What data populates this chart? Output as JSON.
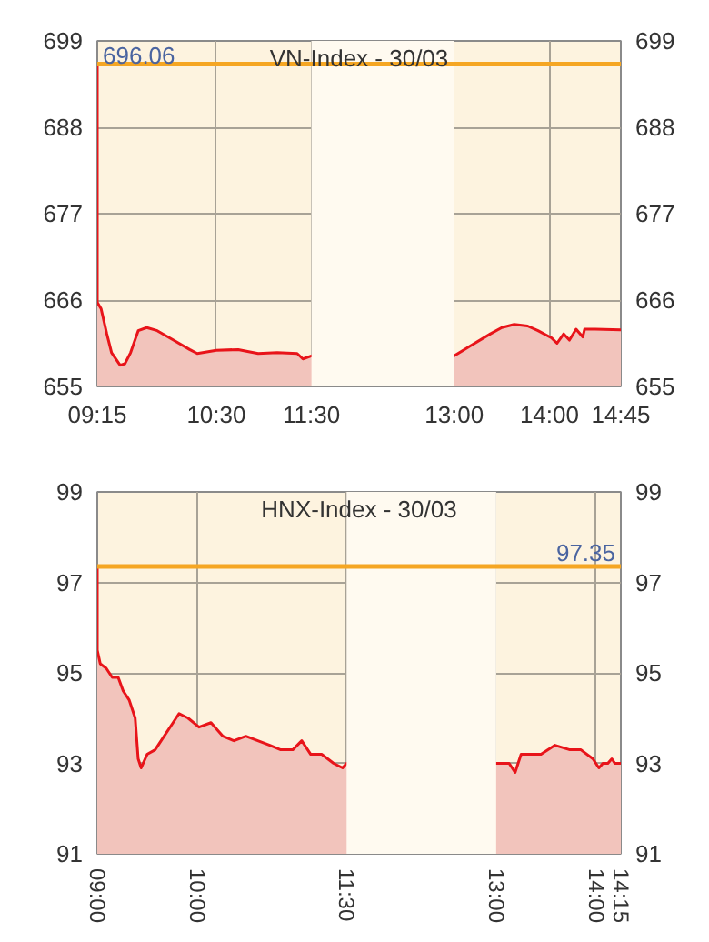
{
  "chart_data": [
    {
      "type": "area",
      "title": "VN-Index - 30/03",
      "grid": true,
      "x": [
        9.25,
        9.25,
        9.29,
        9.35,
        9.4,
        9.49,
        9.54,
        9.6,
        9.68,
        9.77,
        9.88,
        10.05,
        10.22,
        10.3,
        10.5,
        10.73,
        10.94,
        11.14,
        11.35,
        11.41,
        11.5,
        13,
        13.16,
        13.38,
        13.5,
        13.63,
        13.77,
        13.88,
        14.02,
        14.08,
        14.15,
        14.21,
        14.28,
        14.35,
        14.37,
        14.48,
        14.75
      ],
      "series": [
        {
          "color": "#e8141a",
          "values": [
            696.0,
            665.7,
            664.9,
            661.7,
            659.3,
            657.7,
            657.9,
            659.3,
            662.1,
            662.5,
            662.1,
            660.9,
            659.7,
            659.2,
            659.6,
            659.7,
            659.2,
            659.3,
            659.2,
            658.5,
            658.9,
            658.9,
            660.1,
            661.7,
            662.5,
            662.9,
            662.7,
            662.1,
            661.2,
            660.5,
            661.7,
            660.9,
            662.3,
            661.3,
            662.3,
            662.3,
            662.2
          ]
        }
      ],
      "xlim": [
        9.25,
        14.75
      ],
      "xticks": [
        {
          "value": 9.25,
          "label": "09:15"
        },
        {
          "value": 10.5,
          "label": "10:30"
        },
        {
          "value": 11.5,
          "label": "11:30"
        },
        {
          "value": 13,
          "label": "13:00"
        },
        {
          "value": 14,
          "label": "14:00"
        },
        {
          "value": 14.75,
          "label": "14:45"
        }
      ],
      "ylim": [
        655,
        699
      ],
      "yticks": [
        655,
        666,
        677,
        688,
        699
      ],
      "y2lim": [
        655,
        699
      ],
      "y2ticks": [
        655,
        666,
        677,
        688,
        699
      ],
      "ref_lines": [
        {
          "axis": "y",
          "value": 696.06,
          "label": "696.06",
          "color": "#f5a623"
        }
      ],
      "bands": [
        {
          "axis": "x",
          "from": 11.5,
          "to": 13,
          "color": "#fffaf0"
        }
      ]
    },
    {
      "type": "area",
      "title": "HNX-Index - 30/03",
      "grid": true,
      "x": [
        9,
        9,
        9.03,
        9.09,
        9.15,
        9.21,
        9.26,
        9.32,
        9.38,
        9.41,
        9.44,
        9.5,
        9.58,
        9.67,
        9.76,
        9.82,
        9.91,
        10.02,
        10.14,
        10.26,
        10.37,
        10.49,
        10.61,
        10.73,
        10.84,
        10.96,
        11.05,
        11.14,
        11.25,
        11.37,
        11.46,
        11.5,
        13,
        13.13,
        13.19,
        13.25,
        13.45,
        13.59,
        13.74,
        13.85,
        13.97,
        14.03,
        14.07,
        14.12,
        14.16,
        14.19,
        14.25
      ],
      "series": [
        {
          "color": "#e8141a",
          "values": [
            97.36,
            95.5,
            95.2,
            95.1,
            94.9,
            94.9,
            94.6,
            94.4,
            94.0,
            93.1,
            92.9,
            93.2,
            93.3,
            93.6,
            93.9,
            94.1,
            94.0,
            93.8,
            93.9,
            93.6,
            93.5,
            93.6,
            93.5,
            93.4,
            93.3,
            93.3,
            93.5,
            93.2,
            93.2,
            93.0,
            92.9,
            93.0,
            93.0,
            93.0,
            92.8,
            93.2,
            93.2,
            93.4,
            93.3,
            93.3,
            93.1,
            92.9,
            93.0,
            93.0,
            93.1,
            93.0,
            93.0
          ]
        }
      ],
      "xlim": [
        9,
        14.25
      ],
      "xticks": [
        {
          "value": 9,
          "label": "09:00"
        },
        {
          "value": 10,
          "label": "10:00"
        },
        {
          "value": 11.5,
          "label": "11:30"
        },
        {
          "value": 13,
          "label": "13:00"
        },
        {
          "value": 14,
          "label": "14:00"
        },
        {
          "value": 14.25,
          "label": "14:15"
        }
      ],
      "ylim": [
        91,
        99
      ],
      "yticks": [
        91,
        93,
        95,
        97,
        99
      ],
      "y2lim": [
        91,
        99
      ],
      "y2ticks": [
        91,
        93,
        95,
        97,
        99
      ],
      "ref_lines": [
        {
          "axis": "y",
          "value": 97.35,
          "label": "97.35",
          "color": "#f5a623"
        }
      ],
      "bands": [
        {
          "axis": "x",
          "from": 11.5,
          "to": 13,
          "color": "#fffaf0"
        }
      ]
    }
  ]
}
